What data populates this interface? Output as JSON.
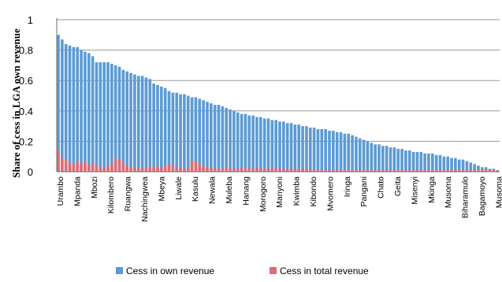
{
  "chart_data": {
    "type": "bar",
    "title": "",
    "xlabel": "",
    "ylabel": "Share of cess in LGA own revenue",
    "ylim": [
      0,
      1
    ],
    "yticks": [
      "0",
      "0.2",
      "0.4",
      "0.6",
      "0.8",
      "1"
    ],
    "grid": true,
    "legend_position": "bottom",
    "colors": {
      "own": "#5b9bd5",
      "total": "#e06c75",
      "grid": "#9a9a9a",
      "axis": "#6d6d6d"
    },
    "tick_labels": [
      "Urambo",
      "Mpanda",
      "Mbozi",
      "Kilombero",
      "Ruangwa",
      "Nachingwea",
      "Mbeya",
      "Liwale",
      "Kasulu",
      "Newala",
      "Muleba",
      "Hanang",
      "Morogoro",
      "Manyoni",
      "Kwimba",
      "Kibondo",
      "Mvomero",
      "Iringa",
      "Pangani",
      "Chato",
      "Geita",
      "Misenyi",
      "Mkinga",
      "Musoma",
      "Biharamulo",
      "Bagamoyo",
      "Musoma"
    ],
    "series": [
      {
        "name": "Cess in own revenue",
        "values": [
          0.9,
          0.87,
          0.84,
          0.83,
          0.82,
          0.82,
          0.8,
          0.79,
          0.78,
          0.76,
          0.72,
          0.72,
          0.72,
          0.72,
          0.71,
          0.7,
          0.69,
          0.67,
          0.66,
          0.65,
          0.64,
          0.63,
          0.63,
          0.62,
          0.61,
          0.58,
          0.57,
          0.56,
          0.55,
          0.53,
          0.52,
          0.52,
          0.51,
          0.51,
          0.5,
          0.49,
          0.49,
          0.48,
          0.47,
          0.46,
          0.45,
          0.44,
          0.44,
          0.43,
          0.42,
          0.41,
          0.4,
          0.39,
          0.38,
          0.38,
          0.37,
          0.37,
          0.36,
          0.36,
          0.35,
          0.35,
          0.34,
          0.34,
          0.33,
          0.33,
          0.32,
          0.32,
          0.31,
          0.31,
          0.3,
          0.3,
          0.29,
          0.29,
          0.28,
          0.28,
          0.28,
          0.27,
          0.27,
          0.26,
          0.26,
          0.25,
          0.25,
          0.24,
          0.23,
          0.22,
          0.21,
          0.2,
          0.19,
          0.18,
          0.18,
          0.17,
          0.17,
          0.16,
          0.16,
          0.15,
          0.15,
          0.14,
          0.14,
          0.13,
          0.13,
          0.13,
          0.12,
          0.12,
          0.12,
          0.11,
          0.11,
          0.1,
          0.1,
          0.09,
          0.09,
          0.08,
          0.08,
          0.07,
          0.06,
          0.05,
          0.04,
          0.03,
          0.03,
          0.02,
          0.02,
          0.01
        ]
      },
      {
        "name": "Cess in total revenue",
        "values": [
          0.14,
          0.09,
          0.08,
          0.06,
          0.05,
          0.07,
          0.06,
          0.07,
          0.04,
          0.06,
          0.04,
          0.03,
          0.03,
          0.04,
          0.05,
          0.09,
          0.08,
          0.06,
          0.04,
          0.03,
          0.03,
          0.02,
          0.03,
          0.03,
          0.04,
          0.03,
          0.04,
          0.03,
          0.04,
          0.05,
          0.04,
          0.03,
          0.03,
          0.02,
          0.03,
          0.07,
          0.07,
          0.05,
          0.04,
          0.03,
          0.03,
          0.02,
          0.02,
          0.02,
          0.03,
          0.03,
          0.02,
          0.02,
          0.03,
          0.02,
          0.03,
          0.02,
          0.03,
          0.02,
          0.02,
          0.02,
          0.03,
          0.02,
          0.02,
          0.02,
          0.02,
          0.02,
          0.02,
          0.02,
          0.02,
          0.02,
          0.02,
          0.01,
          0.01,
          0.01,
          0.01,
          0.01,
          0.01,
          0.01,
          0.01,
          0.01,
          0.01,
          0.01,
          0.01,
          0.01,
          0.01,
          0.01,
          0.01,
          0.01,
          0.01,
          0.01,
          0.01,
          0.01,
          0.01,
          0.01,
          0.01,
          0.01,
          0.01,
          0.01,
          0.01,
          0.01,
          0.01,
          0.01,
          0.01,
          0.01,
          0.01,
          0.01,
          0.01,
          0.01,
          0.01,
          0.01,
          0.01,
          0.01,
          0.01,
          0.01,
          0.01,
          0.01,
          0.01,
          0.01,
          0.01,
          0.01
        ]
      }
    ]
  }
}
